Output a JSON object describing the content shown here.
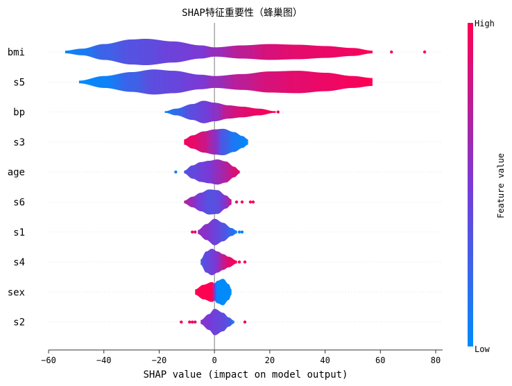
{
  "chart_data": {
    "type": "violin",
    "title": "SHAP特征重要性（蜂巢图）",
    "xlabel": "SHAP value (impact on model output)",
    "xlim": [
      -60,
      83
    ],
    "xticks": [
      -60,
      -40,
      -20,
      0,
      20,
      40,
      60,
      80
    ],
    "colorbar": {
      "label": "Feature value",
      "high": "High",
      "low": "Low",
      "low_color": "#008bfb",
      "mid_color": "#7a3ad6",
      "high_color": "#ff0052"
    },
    "zero_line": 0,
    "features": [
      {
        "name": "bmi",
        "min": -54,
        "max": 57,
        "knots": [
          [
            -54,
            0.1,
            0.05
          ],
          [
            -48,
            0.25,
            0.1
          ],
          [
            -40,
            0.6,
            0.25
          ],
          [
            -30,
            0.95,
            0.35
          ],
          [
            -25,
            1.0,
            0.38
          ],
          [
            -15,
            0.8,
            0.45
          ],
          [
            -5,
            0.5,
            0.5
          ],
          [
            0,
            0.35,
            0.6
          ],
          [
            10,
            0.5,
            0.75
          ],
          [
            20,
            0.6,
            0.85
          ],
          [
            30,
            0.55,
            0.9
          ],
          [
            40,
            0.45,
            0.92
          ],
          [
            50,
            0.3,
            0.95
          ],
          [
            57,
            0.1,
            1.0
          ]
        ],
        "outliers": [
          [
            64,
            0.98
          ],
          [
            76,
            1.0
          ]
        ]
      },
      {
        "name": "s5",
        "min": -49,
        "max": 57,
        "knots": [
          [
            -49,
            0.1,
            0.0
          ],
          [
            -40,
            0.45,
            0.05
          ],
          [
            -30,
            0.75,
            0.25
          ],
          [
            -22,
            0.95,
            0.38
          ],
          [
            -15,
            0.85,
            0.42
          ],
          [
            -5,
            0.55,
            0.5
          ],
          [
            0,
            0.45,
            0.6
          ],
          [
            10,
            0.6,
            0.75
          ],
          [
            20,
            0.8,
            0.85
          ],
          [
            30,
            0.85,
            0.9
          ],
          [
            40,
            0.7,
            0.93
          ],
          [
            50,
            0.45,
            0.96
          ],
          [
            57,
            0.3,
            1.0
          ]
        ],
        "outliers": []
      },
      {
        "name": "bp",
        "min": -18,
        "max": 22,
        "knots": [
          [
            -18,
            0.05,
            0.05
          ],
          [
            -14,
            0.25,
            0.2
          ],
          [
            -8,
            0.6,
            0.38
          ],
          [
            -4,
            0.85,
            0.45
          ],
          [
            0,
            0.7,
            0.55
          ],
          [
            5,
            0.5,
            0.78
          ],
          [
            10,
            0.4,
            0.88
          ],
          [
            16,
            0.25,
            0.94
          ],
          [
            22,
            0.05,
            1.0
          ]
        ],
        "outliers": [
          [
            23,
            1.0
          ]
        ]
      },
      {
        "name": "s3",
        "min": -11,
        "max": 12,
        "knots": [
          [
            -11,
            0.2,
            0.95
          ],
          [
            -8,
            0.5,
            0.92
          ],
          [
            -4,
            0.8,
            0.82
          ],
          [
            0,
            0.95,
            0.6
          ],
          [
            3,
            1.0,
            0.3
          ],
          [
            7,
            0.75,
            0.12
          ],
          [
            10,
            0.45,
            0.05
          ],
          [
            12,
            0.2,
            0.0
          ]
        ],
        "outliers": []
      },
      {
        "name": "age",
        "min": -11,
        "max": 9,
        "knots": [
          [
            -11,
            0.1,
            0.35
          ],
          [
            -8,
            0.5,
            0.4
          ],
          [
            -5,
            0.75,
            0.45
          ],
          [
            -2,
            0.85,
            0.5
          ],
          [
            1,
            0.95,
            0.6
          ],
          [
            4,
            0.8,
            0.7
          ],
          [
            7,
            0.4,
            0.85
          ],
          [
            9,
            0.1,
            0.9
          ]
        ],
        "outliers": [
          [
            -14,
            0.05
          ]
        ]
      },
      {
        "name": "s6",
        "min": -11,
        "max": 6,
        "knots": [
          [
            -11,
            0.1,
            0.7
          ],
          [
            -8,
            0.4,
            0.6
          ],
          [
            -5,
            0.7,
            0.45
          ],
          [
            -2,
            0.95,
            0.35
          ],
          [
            1,
            0.9,
            0.38
          ],
          [
            4,
            0.5,
            0.55
          ],
          [
            6,
            0.2,
            0.8
          ]
        ],
        "outliers": [
          [
            8,
            0.9
          ],
          [
            10,
            0.95
          ],
          [
            13,
            1.0
          ],
          [
            14,
            0.98
          ]
        ]
      },
      {
        "name": "s1",
        "min": -6,
        "max": 8,
        "knots": [
          [
            -6,
            0.15,
            0.6
          ],
          [
            -3,
            0.6,
            0.55
          ],
          [
            0,
            1.0,
            0.45
          ],
          [
            3,
            0.7,
            0.35
          ],
          [
            6,
            0.3,
            0.2
          ],
          [
            8,
            0.1,
            0.05
          ]
        ],
        "outliers": [
          [
            -8,
            0.95
          ],
          [
            -7,
            0.9
          ],
          [
            9,
            0.05
          ],
          [
            10,
            0.05
          ]
        ]
      },
      {
        "name": "s4",
        "min": -5,
        "max": 8,
        "knots": [
          [
            -5,
            0.2,
            0.3
          ],
          [
            -3,
            0.8,
            0.4
          ],
          [
            -1,
            1.0,
            0.45
          ],
          [
            1,
            0.8,
            0.55
          ],
          [
            3,
            0.6,
            0.75
          ],
          [
            5,
            0.4,
            0.9
          ],
          [
            8,
            0.1,
            1.0
          ]
        ],
        "outliers": [
          [
            9,
            1.0
          ],
          [
            11,
            1.0
          ]
        ]
      },
      {
        "name": "sex",
        "min": -7,
        "max": 6,
        "knots": [
          [
            -7,
            0.2,
            1.0
          ],
          [
            -4,
            0.55,
            1.0
          ],
          [
            -1,
            0.75,
            1.0
          ],
          [
            0,
            0.65,
            0.5
          ],
          [
            1,
            0.85,
            0.0
          ],
          [
            3,
            1.0,
            0.0
          ],
          [
            5,
            0.6,
            0.0
          ],
          [
            6,
            0.2,
            0.0
          ]
        ],
        "outliers": []
      },
      {
        "name": "s2",
        "min": -5,
        "max": 7,
        "knots": [
          [
            -5,
            0.15,
            0.55
          ],
          [
            -2,
            0.6,
            0.5
          ],
          [
            0,
            1.0,
            0.45
          ],
          [
            3,
            0.7,
            0.4
          ],
          [
            5,
            0.35,
            0.35
          ],
          [
            7,
            0.1,
            0.1
          ]
        ],
        "outliers": [
          [
            -12,
            0.98
          ],
          [
            -9,
            1.0
          ],
          [
            -8,
            0.95
          ],
          [
            -7,
            0.9
          ],
          [
            11,
            1.0
          ]
        ]
      }
    ]
  }
}
